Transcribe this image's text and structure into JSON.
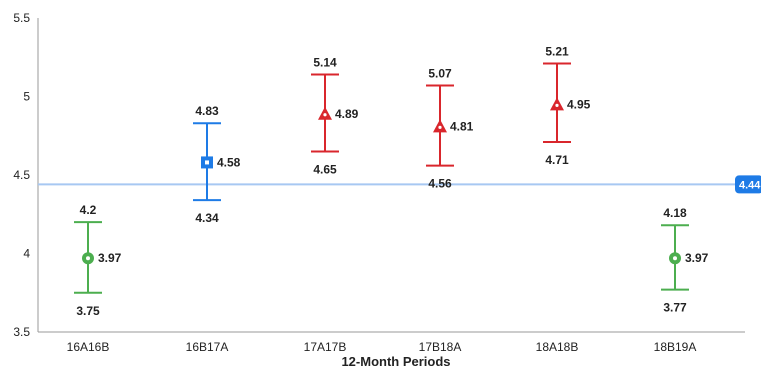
{
  "chart_data": {
    "type": "scatter",
    "title": "",
    "xlabel": "12-Month Periods",
    "ylabel": "",
    "ylim": [
      3.5,
      5.5
    ],
    "yticks": [
      "3.5",
      "4",
      "4.5",
      "5",
      "5.5"
    ],
    "grid": false,
    "categories": [
      "16A16B",
      "16B17A",
      "17A17B",
      "17B18A",
      "18A18B",
      "18B19A"
    ],
    "points": [
      {
        "category": "16A16B",
        "value": 3.97,
        "value_label": "3.97",
        "upper": 4.2,
        "upper_label": "4.2",
        "lower": 3.75,
        "lower_label": "3.75",
        "marker": "circle",
        "color": "#4cae4f"
      },
      {
        "category": "16B17A",
        "value": 4.58,
        "value_label": "4.58",
        "upper": 4.83,
        "upper_label": "4.83",
        "lower": 4.34,
        "lower_label": "4.34",
        "marker": "square",
        "color": "#1e7be6"
      },
      {
        "category": "17A17B",
        "value": 4.89,
        "value_label": "4.89",
        "upper": 5.14,
        "upper_label": "5.14",
        "lower": 4.65,
        "lower_label": "4.65",
        "marker": "triangle",
        "color": "#d9262c"
      },
      {
        "category": "17B18A",
        "value": 4.81,
        "value_label": "4.81",
        "upper": 5.07,
        "upper_label": "5.07",
        "lower": 4.56,
        "lower_label": "4.56",
        "marker": "triangle",
        "color": "#d9262c"
      },
      {
        "category": "18A18B",
        "value": 4.95,
        "value_label": "4.95",
        "upper": 5.21,
        "upper_label": "5.21",
        "lower": 4.71,
        "lower_label": "4.71",
        "marker": "triangle",
        "color": "#d9262c"
      },
      {
        "category": "18B19A",
        "value": 3.97,
        "value_label": "3.97",
        "upper": 4.18,
        "upper_label": "4.18",
        "lower": 3.77,
        "lower_label": "3.77",
        "marker": "circle",
        "color": "#4cae4f"
      }
    ],
    "reference_line": {
      "value": 4.44,
      "label": "4.44",
      "color": "#a7c8f2",
      "badge_color": "#1e7be6"
    }
  }
}
